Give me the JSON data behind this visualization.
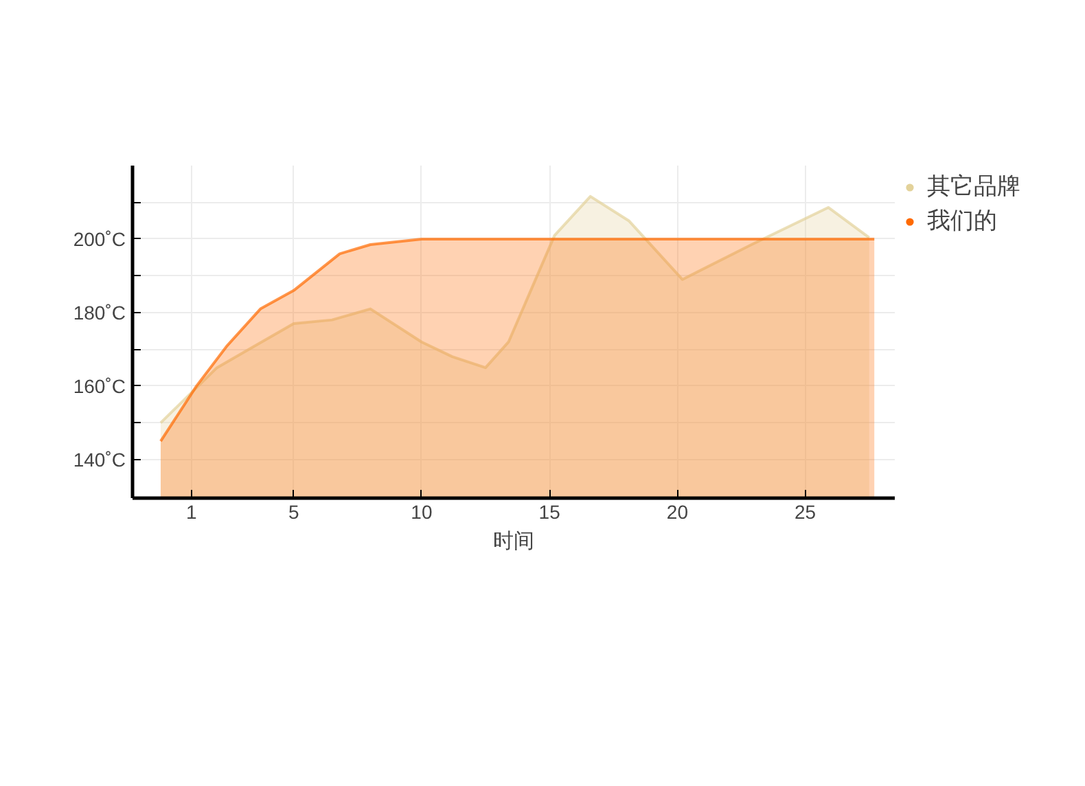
{
  "chart_data": {
    "type": "area",
    "xlabel": "时间",
    "xlim": [
      -1.3,
      28.5
    ],
    "ylim": [
      129.5,
      220
    ],
    "xticks": [
      1,
      5,
      10,
      15,
      20,
      25
    ],
    "yticks": [
      {
        "value": 140,
        "label": "140˚C"
      },
      {
        "value": 150,
        "label": null
      },
      {
        "value": 160,
        "label": "160˚C"
      },
      {
        "value": 170,
        "label": null
      },
      {
        "value": 180,
        "label": "180˚C"
      },
      {
        "value": 190,
        "label": null
      },
      {
        "value": 200,
        "label": "200˚C"
      },
      {
        "value": 210,
        "label": null
      }
    ],
    "grid": true,
    "legend": "top right",
    "series": [
      {
        "name": "其它品牌",
        "color": "#e3d29a",
        "x": [
          -0.2,
          2,
          5,
          6.5,
          8,
          10,
          11.2,
          12.5,
          13.4,
          15.2,
          16.6,
          18.1,
          20.2,
          22.9,
          25.9,
          27.5
        ],
        "values": [
          150,
          165,
          177,
          178,
          181,
          172,
          168,
          165,
          172,
          201,
          211.6,
          205,
          189,
          198.5,
          208.6,
          200.4
        ]
      },
      {
        "name": "我们的",
        "color": "#ff6a00",
        "x": [
          -0.2,
          1.2,
          2.4,
          3.7,
          5,
          6.8,
          8,
          10,
          27.7
        ],
        "values": [
          145,
          160,
          171,
          181,
          186,
          196,
          198.5,
          200,
          200
        ]
      }
    ]
  }
}
